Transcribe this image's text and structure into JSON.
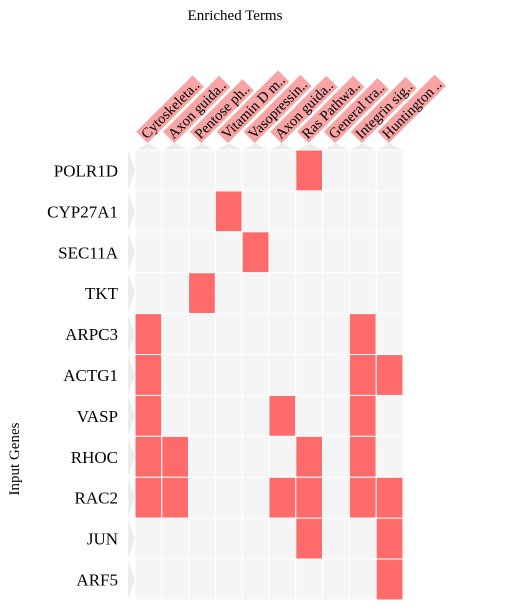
{
  "chart_data": {
    "type": "heatmap",
    "title": "",
    "xlabel": "Enriched Terms",
    "ylabel": "Input Genes",
    "columns": [
      "Cytoskeleta..",
      "Axon guida..",
      "Pentose ph..",
      "Vitamin D m..",
      "Vasopressin..",
      "Axon guida..",
      "Ras Pathwa..",
      "General tra..",
      "Integrin sig..",
      "Huntington .."
    ],
    "rows": [
      "POLR1D",
      "CYP27A1",
      "SEC11A",
      "TKT",
      "ARPC3",
      "ACTG1",
      "VASP",
      "RHOC",
      "RAC2",
      "JUN",
      "ARF5"
    ],
    "values": [
      [
        0,
        0,
        0,
        0,
        0,
        0,
        1,
        0,
        0,
        0
      ],
      [
        0,
        0,
        0,
        1,
        0,
        0,
        0,
        0,
        0,
        0
      ],
      [
        0,
        0,
        0,
        0,
        1,
        0,
        0,
        0,
        0,
        0
      ],
      [
        0,
        0,
        1,
        0,
        0,
        0,
        0,
        0,
        0,
        0
      ],
      [
        1,
        0,
        0,
        0,
        0,
        0,
        0,
        0,
        1,
        0
      ],
      [
        1,
        0,
        0,
        0,
        0,
        0,
        0,
        0,
        1,
        1
      ],
      [
        1,
        0,
        0,
        0,
        0,
        1,
        0,
        0,
        1,
        0
      ],
      [
        1,
        1,
        0,
        0,
        0,
        0,
        1,
        0,
        1,
        0
      ],
      [
        1,
        1,
        0,
        0,
        0,
        1,
        1,
        0,
        1,
        1
      ],
      [
        0,
        0,
        0,
        0,
        0,
        0,
        1,
        0,
        0,
        1
      ],
      [
        0,
        0,
        0,
        0,
        0,
        0,
        0,
        0,
        0,
        1
      ]
    ],
    "colors": {
      "active": "#ff6b6b",
      "inactive": "#f5f5f5",
      "label_highlight": "#f8a4a4",
      "grid": "#ffffff"
    }
  }
}
